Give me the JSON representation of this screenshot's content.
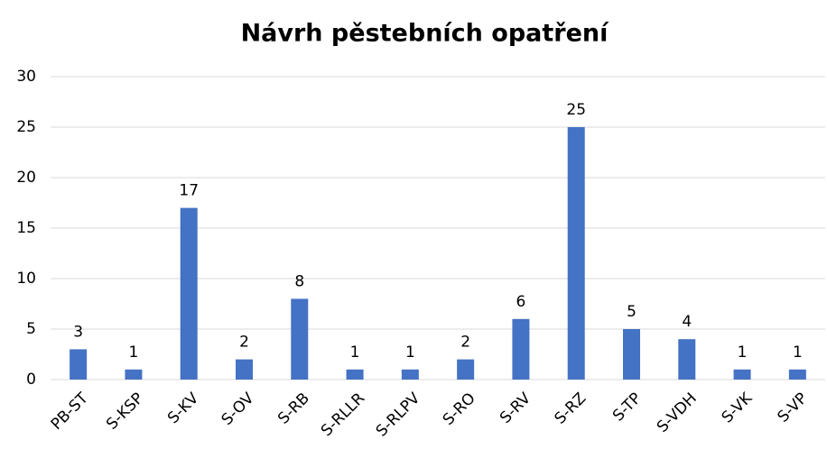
{
  "chart_data": {
    "type": "bar",
    "title": "Návrh pěstebních opatření",
    "categories": [
      "PB-ST",
      "S-KSP",
      "S-KV",
      "S-OV",
      "S-RB",
      "S-RLLR",
      "S-RLPV",
      "S-RO",
      "S-RV",
      "S-RZ",
      "S-TP",
      "S-VDH",
      "S-VK",
      "S-VP"
    ],
    "values": [
      3,
      1,
      17,
      2,
      8,
      1,
      1,
      2,
      6,
      25,
      5,
      4,
      1,
      1
    ],
    "color": "#4472c4",
    "ylim": [
      0,
      30
    ],
    "yticks": [
      0,
      5,
      10,
      15,
      20,
      25,
      30
    ],
    "grid": true
  }
}
